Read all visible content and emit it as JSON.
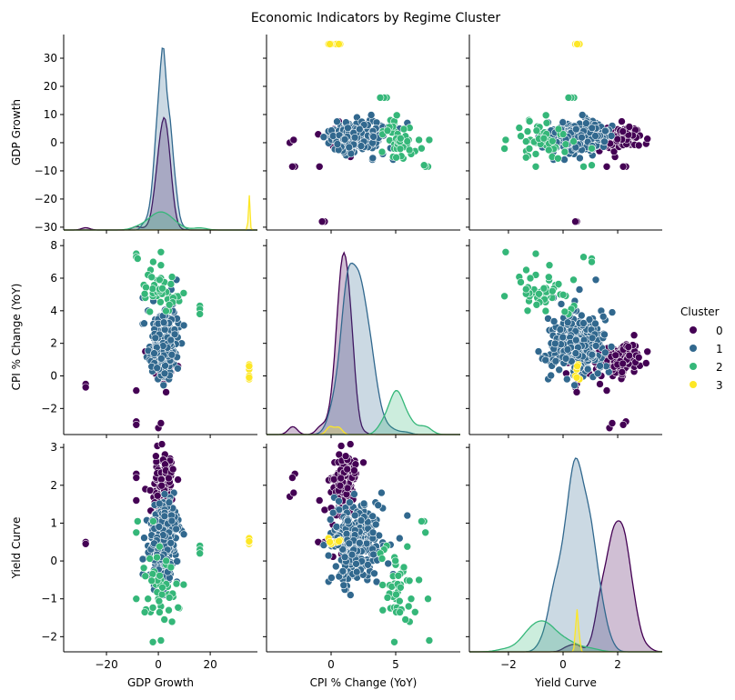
{
  "chart_data": {
    "type": "scatter",
    "title": "Economic Indicators by Regime Cluster",
    "variables": [
      {
        "name": "GDP Growth",
        "range": [
          -36.5,
          38.2
        ],
        "ticks": [
          -20,
          0,
          20
        ],
        "yrange": [
          -31,
          38.4
        ],
        "yticks": [
          -30,
          -20,
          -10,
          0,
          10,
          20,
          30
        ]
      },
      {
        "name": "CPI % Change (YoY)",
        "range": [
          -5,
          10
        ],
        "ticks": [
          0,
          5
        ],
        "yrange": [
          -3.6,
          8.4
        ],
        "yticks": [
          -2,
          0,
          2,
          4,
          6,
          8
        ]
      },
      {
        "name": "Yield Curve",
        "range": [
          -3.43,
          3.63
        ],
        "ticks": [
          -2,
          0,
          2
        ],
        "yrange": [
          -2.4,
          3.1
        ],
        "yticks": [
          -2,
          -1,
          0,
          1,
          2,
          3
        ]
      }
    ],
    "legend": {
      "title": "Cluster",
      "position": "right"
    },
    "clusters": [
      {
        "label": "0",
        "color": "#440154",
        "cloud": {
          "n": 150,
          "mean": [
            2,
            1.0,
            2.0
          ],
          "sd": [
            2.0,
            0.55,
            0.45
          ]
        },
        "points": [
          [
            -28,
            -0.5,
            0.5
          ],
          [
            -28,
            -0.7,
            0.45
          ],
          [
            -8.5,
            -2.8,
            2.3
          ],
          [
            -8.5,
            -3.0,
            2.2
          ],
          [
            -8.5,
            -0.9,
            1.6
          ],
          [
            -5,
            1.5,
            1.9
          ],
          [
            0,
            -3.2,
            1.7
          ],
          [
            1,
            -2.9,
            1.8
          ],
          [
            3,
            -1.0,
            0.5
          ],
          [
            2,
            -0.5,
            1.35
          ],
          [
            5,
            2.5,
            2.6
          ],
          [
            3,
            0.0,
            1.4
          ]
        ]
      },
      {
        "label": "1",
        "color": "#31688e",
        "cloud": {
          "n": 260,
          "mean": [
            2,
            1.9,
            0.5
          ],
          "sd": [
            2.6,
            0.9,
            0.5
          ]
        },
        "points": [
          [
            -6,
            4.8,
            -0.35
          ],
          [
            -6,
            3.2,
            0.05
          ],
          [
            -4,
            4.0,
            0.4
          ],
          [
            8,
            3.0,
            0.9
          ],
          [
            9,
            2.0,
            0.8
          ],
          [
            7,
            5.9,
            1.2
          ],
          [
            5,
            5.3,
            0.6
          ],
          [
            2,
            1.5,
            -0.9
          ],
          [
            4,
            2.8,
            -0.5
          ],
          [
            6,
            3.9,
            1.8
          ]
        ]
      },
      {
        "label": "2",
        "color": "#35b779",
        "cloud": {
          "n": 35,
          "mean": [
            1,
            5.2,
            -0.6
          ],
          "sd": [
            3,
            0.6,
            0.4
          ]
        },
        "points": [
          [
            -8.5,
            7.5,
            -1.0
          ],
          [
            -8.5,
            7.3,
            0.75
          ],
          [
            -8,
            7.2,
            1.05
          ],
          [
            16,
            4.3,
            0.4
          ],
          [
            16,
            4.1,
            0.3
          ],
          [
            16,
            3.8,
            0.2
          ],
          [
            -3,
            6.5,
            -1.35
          ],
          [
            -4,
            6.2,
            -1.0
          ],
          [
            1,
            7.6,
            -2.1
          ],
          [
            1,
            6.8,
            -0.5
          ],
          [
            -5,
            4.8,
            -0.4
          ],
          [
            3,
            5.0,
            -0.1
          ],
          [
            8,
            4.6,
            -1.25
          ],
          [
            4,
            4.0,
            -1.3
          ],
          [
            1,
            6.0,
            -1.2
          ],
          [
            0,
            5.0,
            -1.0
          ],
          [
            7,
            4.9,
            -0.6
          ],
          [
            -2,
            7.0,
            1.05
          ]
        ]
      },
      {
        "label": "3",
        "color": "#fde725",
        "cloud": {
          "n": 0,
          "mean": [
            35,
            0.3,
            0.5
          ],
          "sd": [
            0,
            0,
            0
          ]
        },
        "points": [
          [
            35,
            0.7,
            0.55
          ],
          [
            35,
            0.4,
            0.5
          ],
          [
            35,
            0.0,
            0.45
          ],
          [
            35,
            -0.2,
            0.6
          ],
          [
            35,
            -0.1,
            0.5
          ],
          [
            35,
            0.6,
            0.52
          ]
        ]
      }
    ]
  }
}
